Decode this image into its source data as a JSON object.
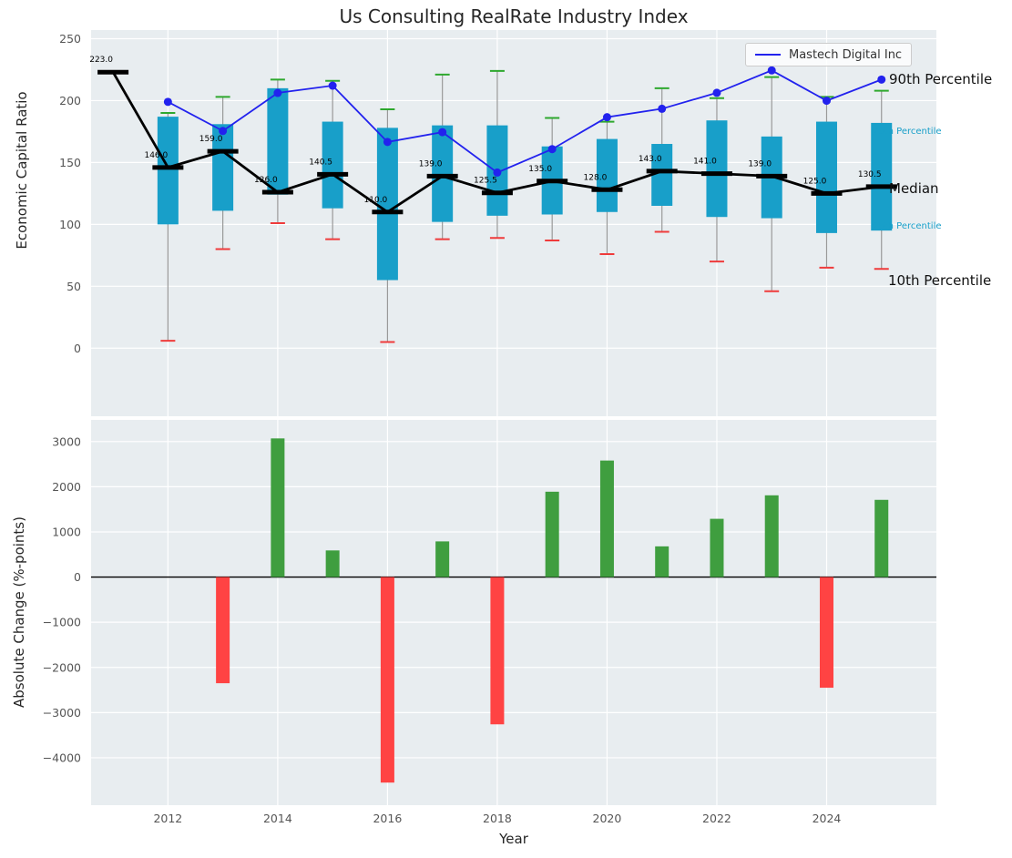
{
  "percentile_labels": {
    "p90": "90th Percentile",
    "p75": "75th Percentile",
    "median": "Median",
    "p25": "25th Percentile",
    "p10": "10th Percentile"
  },
  "colors": {
    "box": "#189fc9",
    "median": "#000000",
    "mastech_line": "#2222ee",
    "cap_high": "#2ea82e",
    "cap_low": "#ef3b3b",
    "bar_positive": "#3f9e3f",
    "bar_negative": "#ff4343",
    "whisker": "#999999",
    "plot_bg": "#e8edf0",
    "grid": "#ffffff",
    "tick_text": "#555555"
  },
  "chart_data": [
    {
      "type": "boxplot+line",
      "title": "Us Consulting RealRate Industry Index",
      "ylabel": "Economic Capital Ratio",
      "ylim": [
        -55,
        257
      ],
      "xlim": [
        2010.6,
        2026.0
      ],
      "yticks": [
        0,
        50,
        100,
        150,
        200,
        250
      ],
      "xticks": [
        2012,
        2014,
        2016,
        2018,
        2020,
        2022,
        2024
      ],
      "grid": true,
      "legend_position": "upper right",
      "boxes": [
        {
          "year": 2011,
          "median": 223.0,
          "label": "223.0",
          "q25": null,
          "q75": null,
          "p10": null,
          "p90": null
        },
        {
          "year": 2012,
          "median": 146.0,
          "label": "146.0",
          "q25": 100,
          "q75": 187,
          "p10": 6,
          "p90": 190
        },
        {
          "year": 2013,
          "median": 159.0,
          "label": "159.0",
          "q25": 111,
          "q75": 181,
          "p10": 80,
          "p90": 203
        },
        {
          "year": 2014,
          "median": 126.0,
          "label": "126.0",
          "q25": 124,
          "q75": 210,
          "p10": 101,
          "p90": 217
        },
        {
          "year": 2015,
          "median": 140.5,
          "label": "140.5",
          "q25": 113,
          "q75": 183,
          "p10": 88,
          "p90": 216
        },
        {
          "year": 2016,
          "median": 110.0,
          "label": "110.0",
          "q25": 55,
          "q75": 178,
          "p10": 5,
          "p90": 193
        },
        {
          "year": 2017,
          "median": 139.0,
          "label": "139.0",
          "q25": 102,
          "q75": 180,
          "p10": 88,
          "p90": 221
        },
        {
          "year": 2018,
          "median": 125.5,
          "label": "125.5",
          "q25": 107,
          "q75": 180,
          "p10": 89,
          "p90": 224
        },
        {
          "year": 2019,
          "median": 135.0,
          "label": "135.0",
          "q25": 108,
          "q75": 163,
          "p10": 87,
          "p90": 186
        },
        {
          "year": 2020,
          "median": 128.0,
          "label": "128.0",
          "q25": 110,
          "q75": 169,
          "p10": 76,
          "p90": 183
        },
        {
          "year": 2021,
          "median": 143.0,
          "label": "143.0",
          "q25": 115,
          "q75": 165,
          "p10": 94,
          "p90": 210
        },
        {
          "year": 2022,
          "median": 141.0,
          "label": "141.0",
          "q25": 106,
          "q75": 184,
          "p10": 70,
          "p90": 202
        },
        {
          "year": 2023,
          "median": 139.0,
          "label": "139.0",
          "q25": 105,
          "q75": 171,
          "p10": 46,
          "p90": 219
        },
        {
          "year": 2024,
          "median": 125.0,
          "label": "125.0",
          "q25": 93,
          "q75": 183,
          "p10": 65,
          "p90": 203
        },
        {
          "year": 2025,
          "median": 130.5,
          "label": "130.5",
          "q25": 95,
          "q75": 182,
          "p10": 64,
          "p90": 208
        }
      ],
      "series": [
        {
          "name": "Mastech Digital Inc",
          "x": [
            2012,
            2013,
            2014,
            2015,
            2016,
            2017,
            2018,
            2019,
            2020,
            2021,
            2022,
            2023,
            2024,
            2025
          ],
          "values": [
            199.0,
            175.5,
            206.2,
            212.1,
            166.6,
            174.5,
            141.9,
            160.8,
            186.6,
            193.4,
            206.3,
            224.4,
            199.9,
            217.0
          ]
        }
      ]
    },
    {
      "type": "bar",
      "ylabel": "Absolute Change (%-points)",
      "xlabel": "Year",
      "ylim": [
        -5050,
        3480
      ],
      "yticks": [
        -4000,
        -3000,
        -2000,
        -1000,
        0,
        1000,
        2000,
        3000
      ],
      "xticks": [
        2012,
        2014,
        2016,
        2018,
        2020,
        2022,
        2024
      ],
      "x": [
        2013,
        2014,
        2015,
        2016,
        2017,
        2018,
        2019,
        2020,
        2021,
        2022,
        2023,
        2024,
        2025
      ],
      "values": [
        -2350,
        3070,
        590,
        -4550,
        790,
        -3260,
        1890,
        2580,
        680,
        1290,
        1810,
        -2450,
        1710
      ]
    }
  ]
}
